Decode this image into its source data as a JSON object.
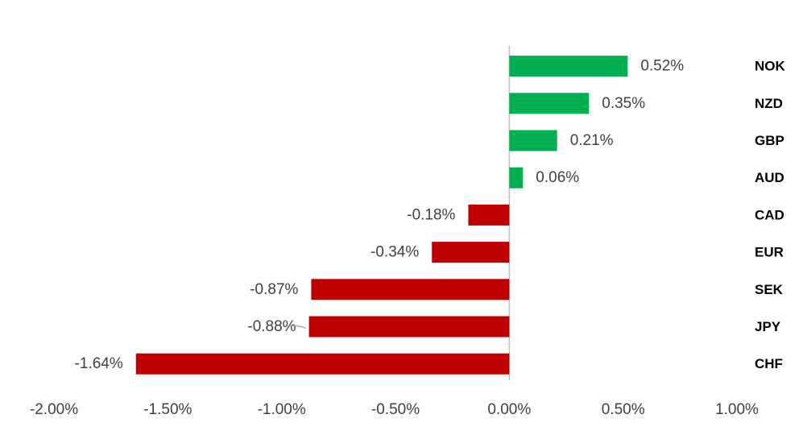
{
  "chart_data": {
    "type": "bar",
    "orientation": "horizontal",
    "categories": [
      "NOK",
      "NZD",
      "GBP",
      "AUD",
      "CAD",
      "EUR",
      "SEK",
      "JPY",
      "CHF"
    ],
    "values": [
      0.52,
      0.35,
      0.21,
      0.06,
      -0.18,
      -0.34,
      -0.87,
      -0.88,
      -1.64
    ],
    "value_labels": [
      "0.52%",
      "0.35%",
      "0.21%",
      "0.06%",
      "-0.18%",
      "-0.34%",
      "-0.87%",
      "-0.88%",
      "-1.64%"
    ],
    "xlim": [
      -2.0,
      1.0
    ],
    "x_ticks": [
      -2.0,
      -1.5,
      -1.0,
      -0.5,
      0.0,
      0.5,
      1.0
    ],
    "x_tick_labels": [
      "-2.00%",
      "-1.50%",
      "-1.00%",
      "-0.50%",
      "0.00%",
      "0.50%",
      "1.00%"
    ],
    "title": "",
    "xlabel": "",
    "ylabel": "",
    "grid": false,
    "legend": "none",
    "colors": {
      "positive": "#00b050",
      "negative": "#c00000",
      "axis": "#bfbfbf"
    },
    "category_label_position": "right"
  }
}
